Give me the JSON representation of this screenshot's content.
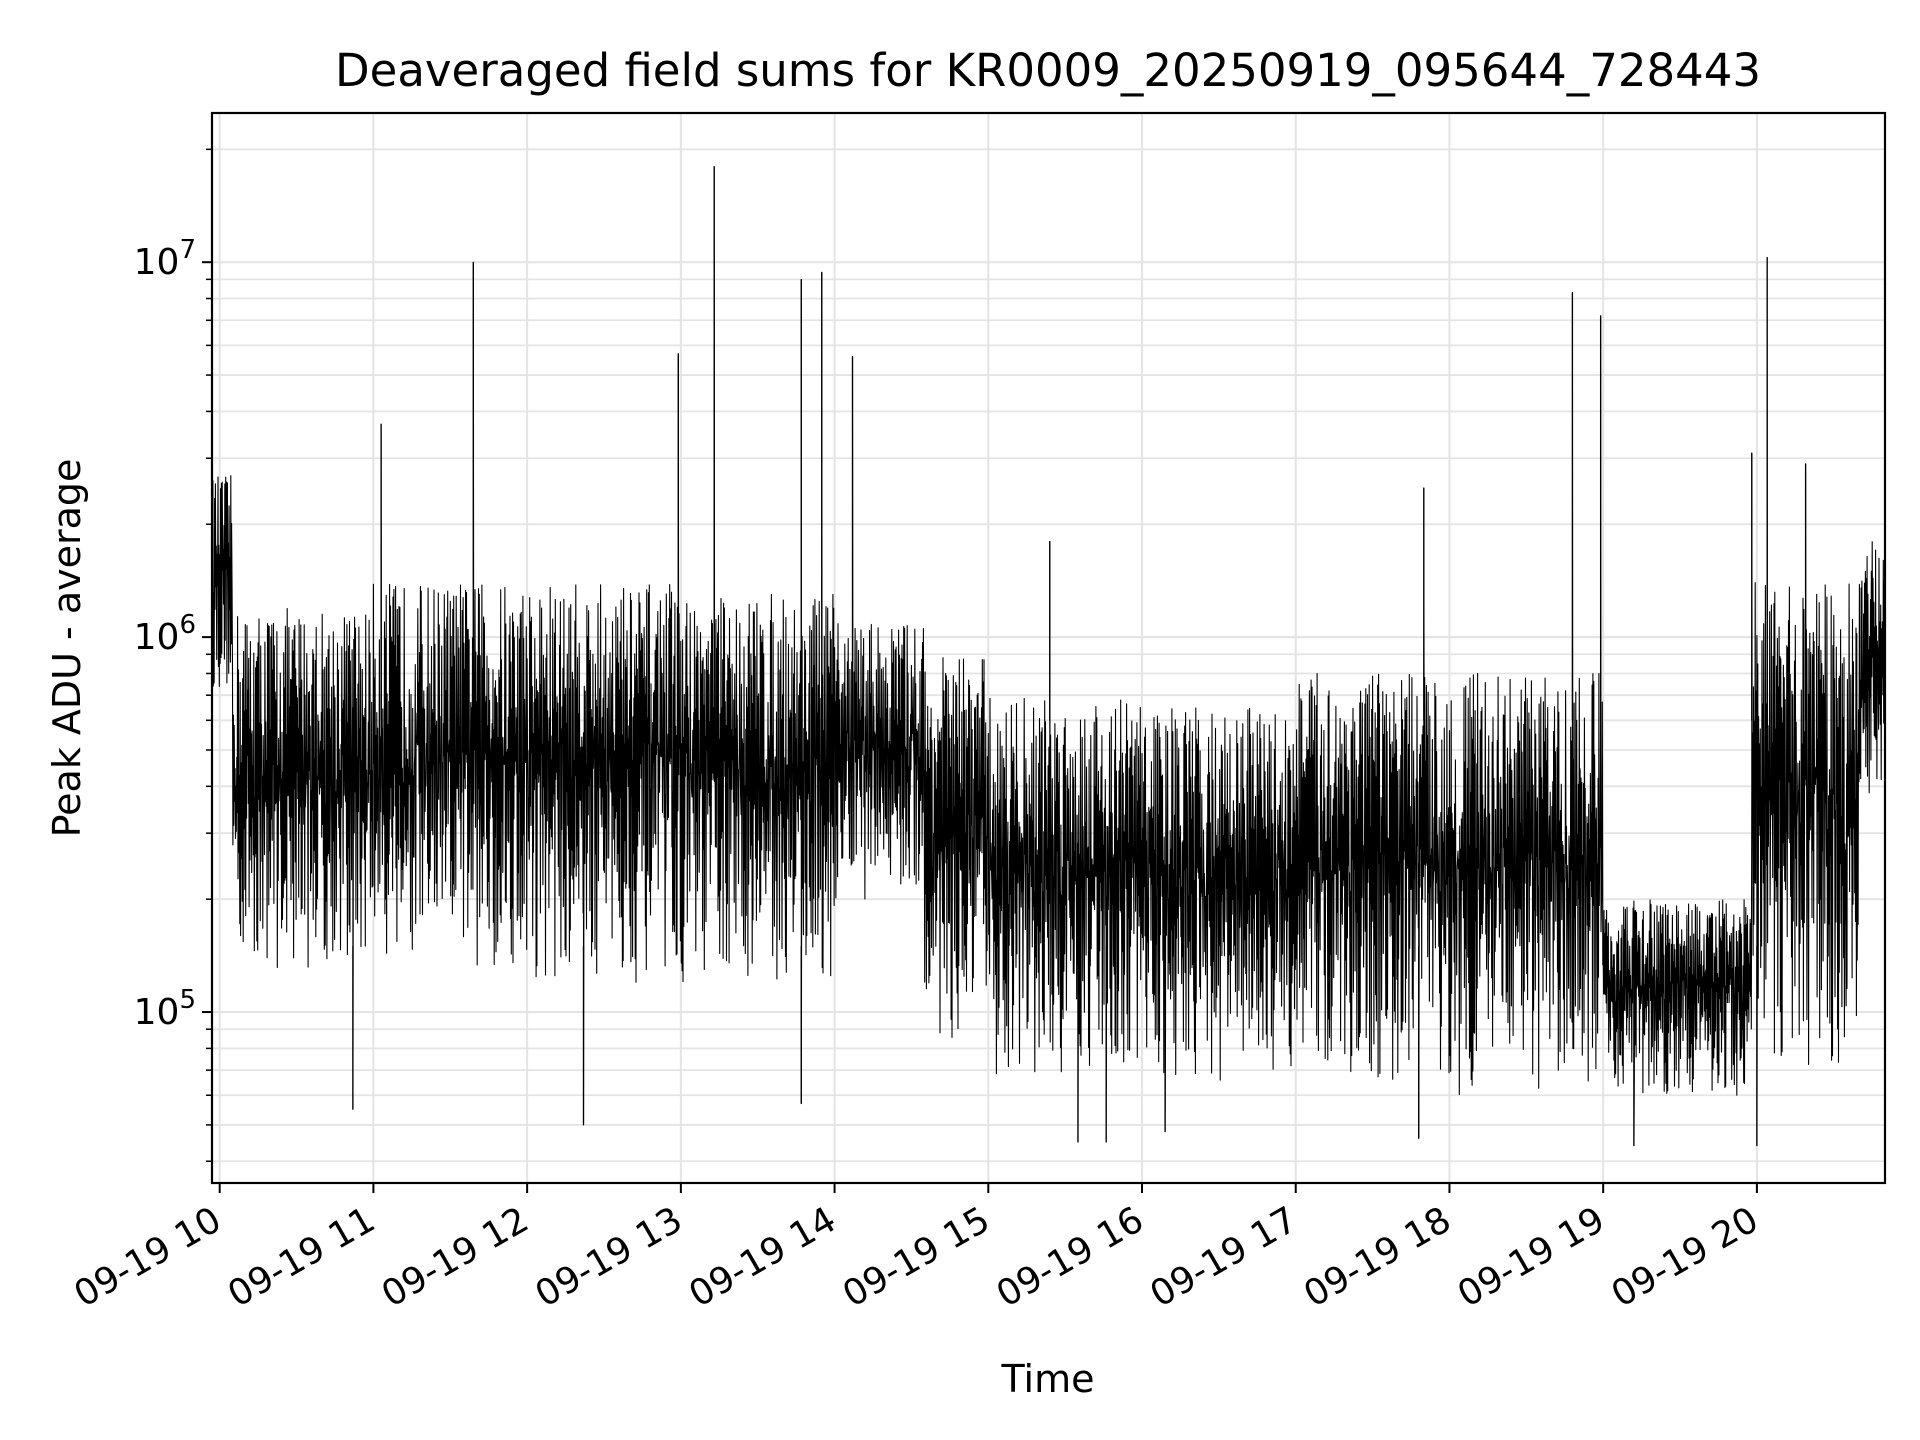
{
  "chart_data": {
    "type": "line",
    "title": "Deaveraged field sums for KR0009_20250919_095644_728443",
    "xlabel": "Time",
    "ylabel": "Peak ADU - average",
    "yscale": "log",
    "ylim": [
      35000,
      25000000
    ],
    "xlim": [
      "2025-09-19 09:57",
      "2025-09-19 20:50"
    ],
    "grid": true,
    "line_color": "#000000",
    "x_ticks": [
      "09-19 10",
      "09-19 11",
      "09-19 12",
      "09-19 13",
      "09-19 14",
      "09-19 15",
      "09-19 16",
      "09-19 17",
      "09-19 18",
      "09-19 19",
      "09-19 20"
    ],
    "y_ticks": [
      {
        "base": "10",
        "exp": "5",
        "value": 100000
      },
      {
        "base": "10",
        "exp": "6",
        "value": 1000000
      },
      {
        "base": "10",
        "exp": "7",
        "value": 10000000
      }
    ],
    "series": [
      {
        "note": "noisy signal; envelope estimated per time segment",
        "segments": [
          {
            "start": "2025-09-19 09:57",
            "end": "2025-09-19 10:05",
            "low": 700000,
            "high": 2700000
          },
          {
            "start": "2025-09-19 10:05",
            "end": "2025-09-19 11:00",
            "low": 130000,
            "high": 1200000
          },
          {
            "start": "2025-09-19 11:00",
            "end": "2025-09-19 12:00",
            "low": 130000,
            "high": 1400000
          },
          {
            "start": "2025-09-19 12:00",
            "end": "2025-09-19 13:00",
            "low": 120000,
            "high": 1400000
          },
          {
            "start": "2025-09-19 13:00",
            "end": "2025-09-19 14:00",
            "low": 120000,
            "high": 1300000
          },
          {
            "start": "2025-09-19 14:00",
            "end": "2025-09-19 14:35",
            "low": 200000,
            "high": 1100000
          },
          {
            "start": "2025-09-19 14:35",
            "end": "2025-09-19 15:00",
            "low": 80000,
            "high": 900000
          },
          {
            "start": "2025-09-19 15:00",
            "end": "2025-09-19 16:00",
            "low": 65000,
            "high": 700000
          },
          {
            "start": "2025-09-19 16:00",
            "end": "2025-09-19 17:00",
            "low": 65000,
            "high": 650000
          },
          {
            "start": "2025-09-19 17:00",
            "end": "2025-09-19 18:00",
            "low": 65000,
            "high": 800000
          },
          {
            "start": "2025-09-19 18:00",
            "end": "2025-09-19 19:00",
            "low": 60000,
            "high": 800000
          },
          {
            "start": "2025-09-19 19:00",
            "end": "2025-09-19 19:58",
            "low": 60000,
            "high": 200000
          },
          {
            "start": "2025-09-19 19:58",
            "end": "2025-09-19 20:40",
            "low": 70000,
            "high": 1400000
          },
          {
            "start": "2025-09-19 20:40",
            "end": "2025-09-19 20:50",
            "low": 350000,
            "high": 1800000
          }
        ],
        "spikes": [
          {
            "x": "2025-09-19 11:03",
            "y": 3700000
          },
          {
            "x": "2025-09-19 11:39",
            "y": 10000000
          },
          {
            "x": "2025-09-19 12:59",
            "y": 5700000
          },
          {
            "x": "2025-09-19 13:13",
            "y": 18000000
          },
          {
            "x": "2025-09-19 13:47",
            "y": 9000000
          },
          {
            "x": "2025-09-19 13:55",
            "y": 9400000
          },
          {
            "x": "2025-09-19 14:07",
            "y": 5600000
          },
          {
            "x": "2025-09-19 15:24",
            "y": 1800000
          },
          {
            "x": "2025-09-19 17:50",
            "y": 2500000
          },
          {
            "x": "2025-09-19 18:48",
            "y": 8300000
          },
          {
            "x": "2025-09-19 18:59",
            "y": 7200000
          },
          {
            "x": "2025-09-19 19:58",
            "y": 3100000
          },
          {
            "x": "2025-09-19 20:04",
            "y": 10300000
          },
          {
            "x": "2025-09-19 20:19",
            "y": 2900000
          }
        ],
        "dips": [
          {
            "x": "2025-09-19 10:52",
            "y": 55000
          },
          {
            "x": "2025-09-19 12:22",
            "y": 50000
          },
          {
            "x": "2025-09-19 13:47",
            "y": 57000
          },
          {
            "x": "2025-09-19 15:35",
            "y": 45000
          },
          {
            "x": "2025-09-19 15:46",
            "y": 45000
          },
          {
            "x": "2025-09-19 16:09",
            "y": 48000
          },
          {
            "x": "2025-09-19 17:48",
            "y": 46000
          },
          {
            "x": "2025-09-19 19:12",
            "y": 44000
          },
          {
            "x": "2025-09-19 20:00",
            "y": 44000
          }
        ]
      }
    ]
  }
}
